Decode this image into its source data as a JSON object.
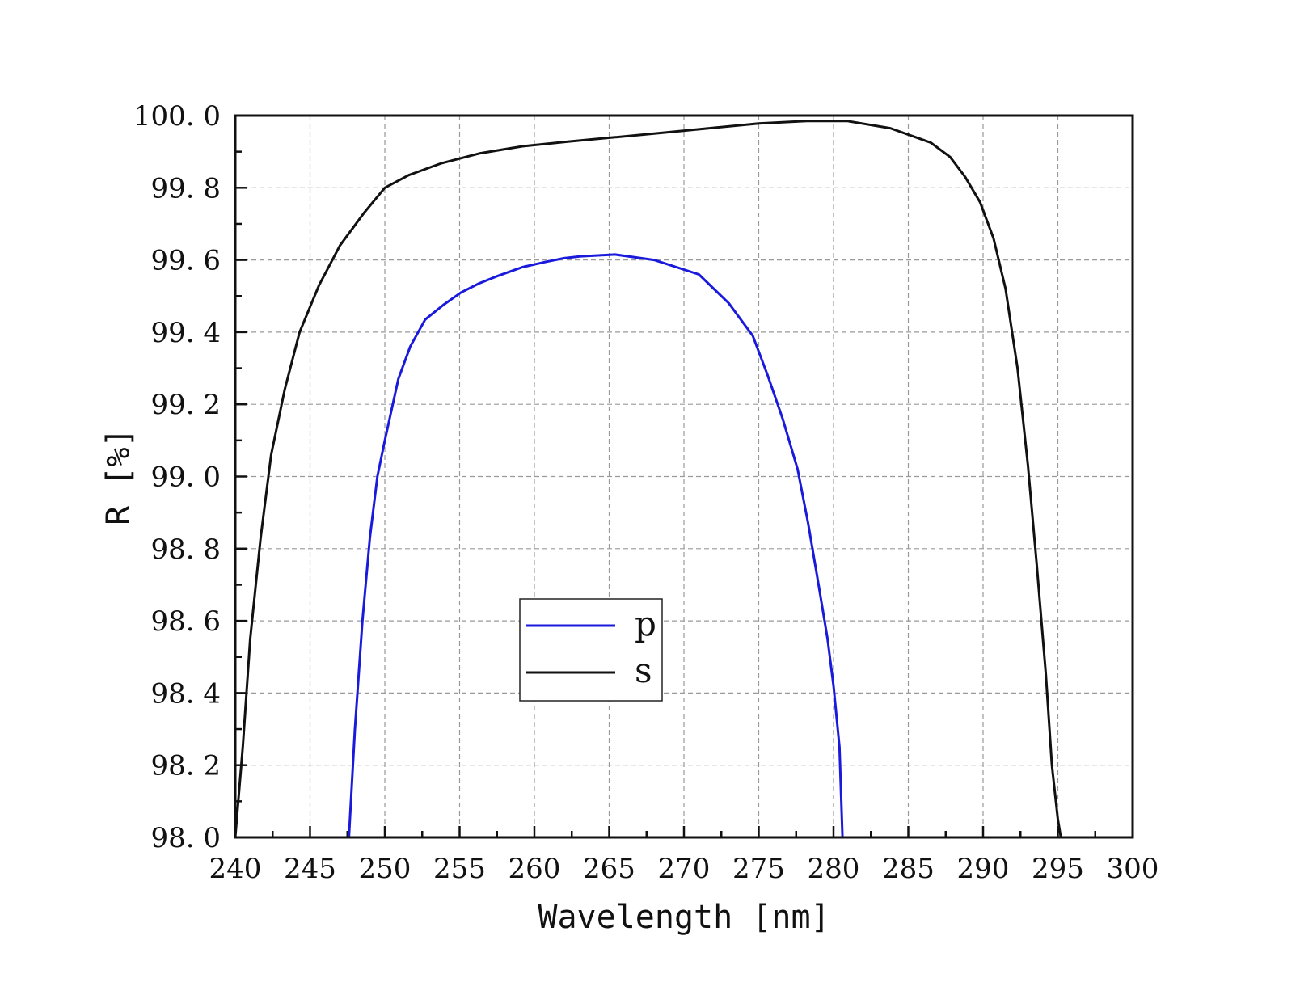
{
  "chart_data": {
    "type": "line",
    "title": "",
    "xlabel": "Wavelength [nm]",
    "ylabel": "R [%]",
    "xlim": [
      240,
      300
    ],
    "ylim": [
      98.0,
      100.0
    ],
    "xticks": [
      240,
      245,
      250,
      255,
      260,
      265,
      270,
      275,
      280,
      285,
      290,
      295,
      300
    ],
    "xtick_labels": [
      "240",
      "245",
      "250",
      "255",
      "260",
      "265",
      "270",
      "275",
      "280",
      "285",
      "290",
      "295",
      "300"
    ],
    "yticks": [
      98.0,
      98.2,
      98.4,
      98.6,
      98.8,
      99.0,
      99.2,
      99.4,
      99.6,
      99.8,
      100.0
    ],
    "ytick_labels": [
      "98. 0",
      "98. 2",
      "98. 4",
      "98. 6",
      "98. 8",
      "99. 0",
      "99. 2",
      "99. 4",
      "99. 6",
      "99. 8",
      "100. 0"
    ],
    "grid": true,
    "legend_position": "center",
    "series": [
      {
        "name": "p",
        "color": "#1a1adc",
        "x": [
          247.6,
          248.0,
          248.5,
          249.0,
          249.5,
          250.0,
          250.9,
          251.7,
          252.7,
          253.9,
          255.1,
          256.3,
          257.5,
          259.2,
          260.8,
          262.0,
          263.1,
          265.4,
          268.0,
          271.0,
          273.0,
          274.6,
          275.6,
          276.6,
          277.6,
          278.3,
          279.0,
          279.6,
          280.0,
          280.4,
          280.6
        ],
        "y": [
          98.0,
          98.3,
          98.6,
          98.83,
          99.0,
          99.1,
          99.27,
          99.36,
          99.435,
          99.475,
          99.51,
          99.535,
          99.555,
          99.58,
          99.595,
          99.605,
          99.61,
          99.615,
          99.6,
          99.56,
          99.48,
          99.39,
          99.28,
          99.16,
          99.02,
          98.87,
          98.7,
          98.55,
          98.42,
          98.25,
          98.0
        ]
      },
      {
        "name": "s",
        "color": "#111111",
        "x": [
          240.0,
          240.5,
          241.0,
          241.7,
          242.4,
          243.3,
          244.3,
          245.6,
          247.0,
          248.6,
          250.0,
          251.6,
          253.8,
          256.3,
          259.2,
          262.3,
          265.4,
          268.5,
          271.7,
          275.0,
          278.2,
          280.9,
          283.8,
          286.5,
          287.8,
          288.8,
          289.8,
          290.7,
          291.5,
          292.3,
          293.0,
          293.6,
          294.2,
          294.6,
          295.0,
          295.2
        ],
        "y": [
          98.0,
          98.25,
          98.55,
          98.83,
          99.06,
          99.24,
          99.4,
          99.53,
          99.64,
          99.73,
          99.8,
          99.835,
          99.868,
          99.895,
          99.915,
          99.928,
          99.94,
          99.952,
          99.965,
          99.978,
          99.985,
          99.985,
          99.965,
          99.925,
          99.885,
          99.83,
          99.76,
          99.66,
          99.52,
          99.3,
          99.03,
          98.75,
          98.45,
          98.2,
          98.05,
          98.0
        ]
      }
    ]
  }
}
